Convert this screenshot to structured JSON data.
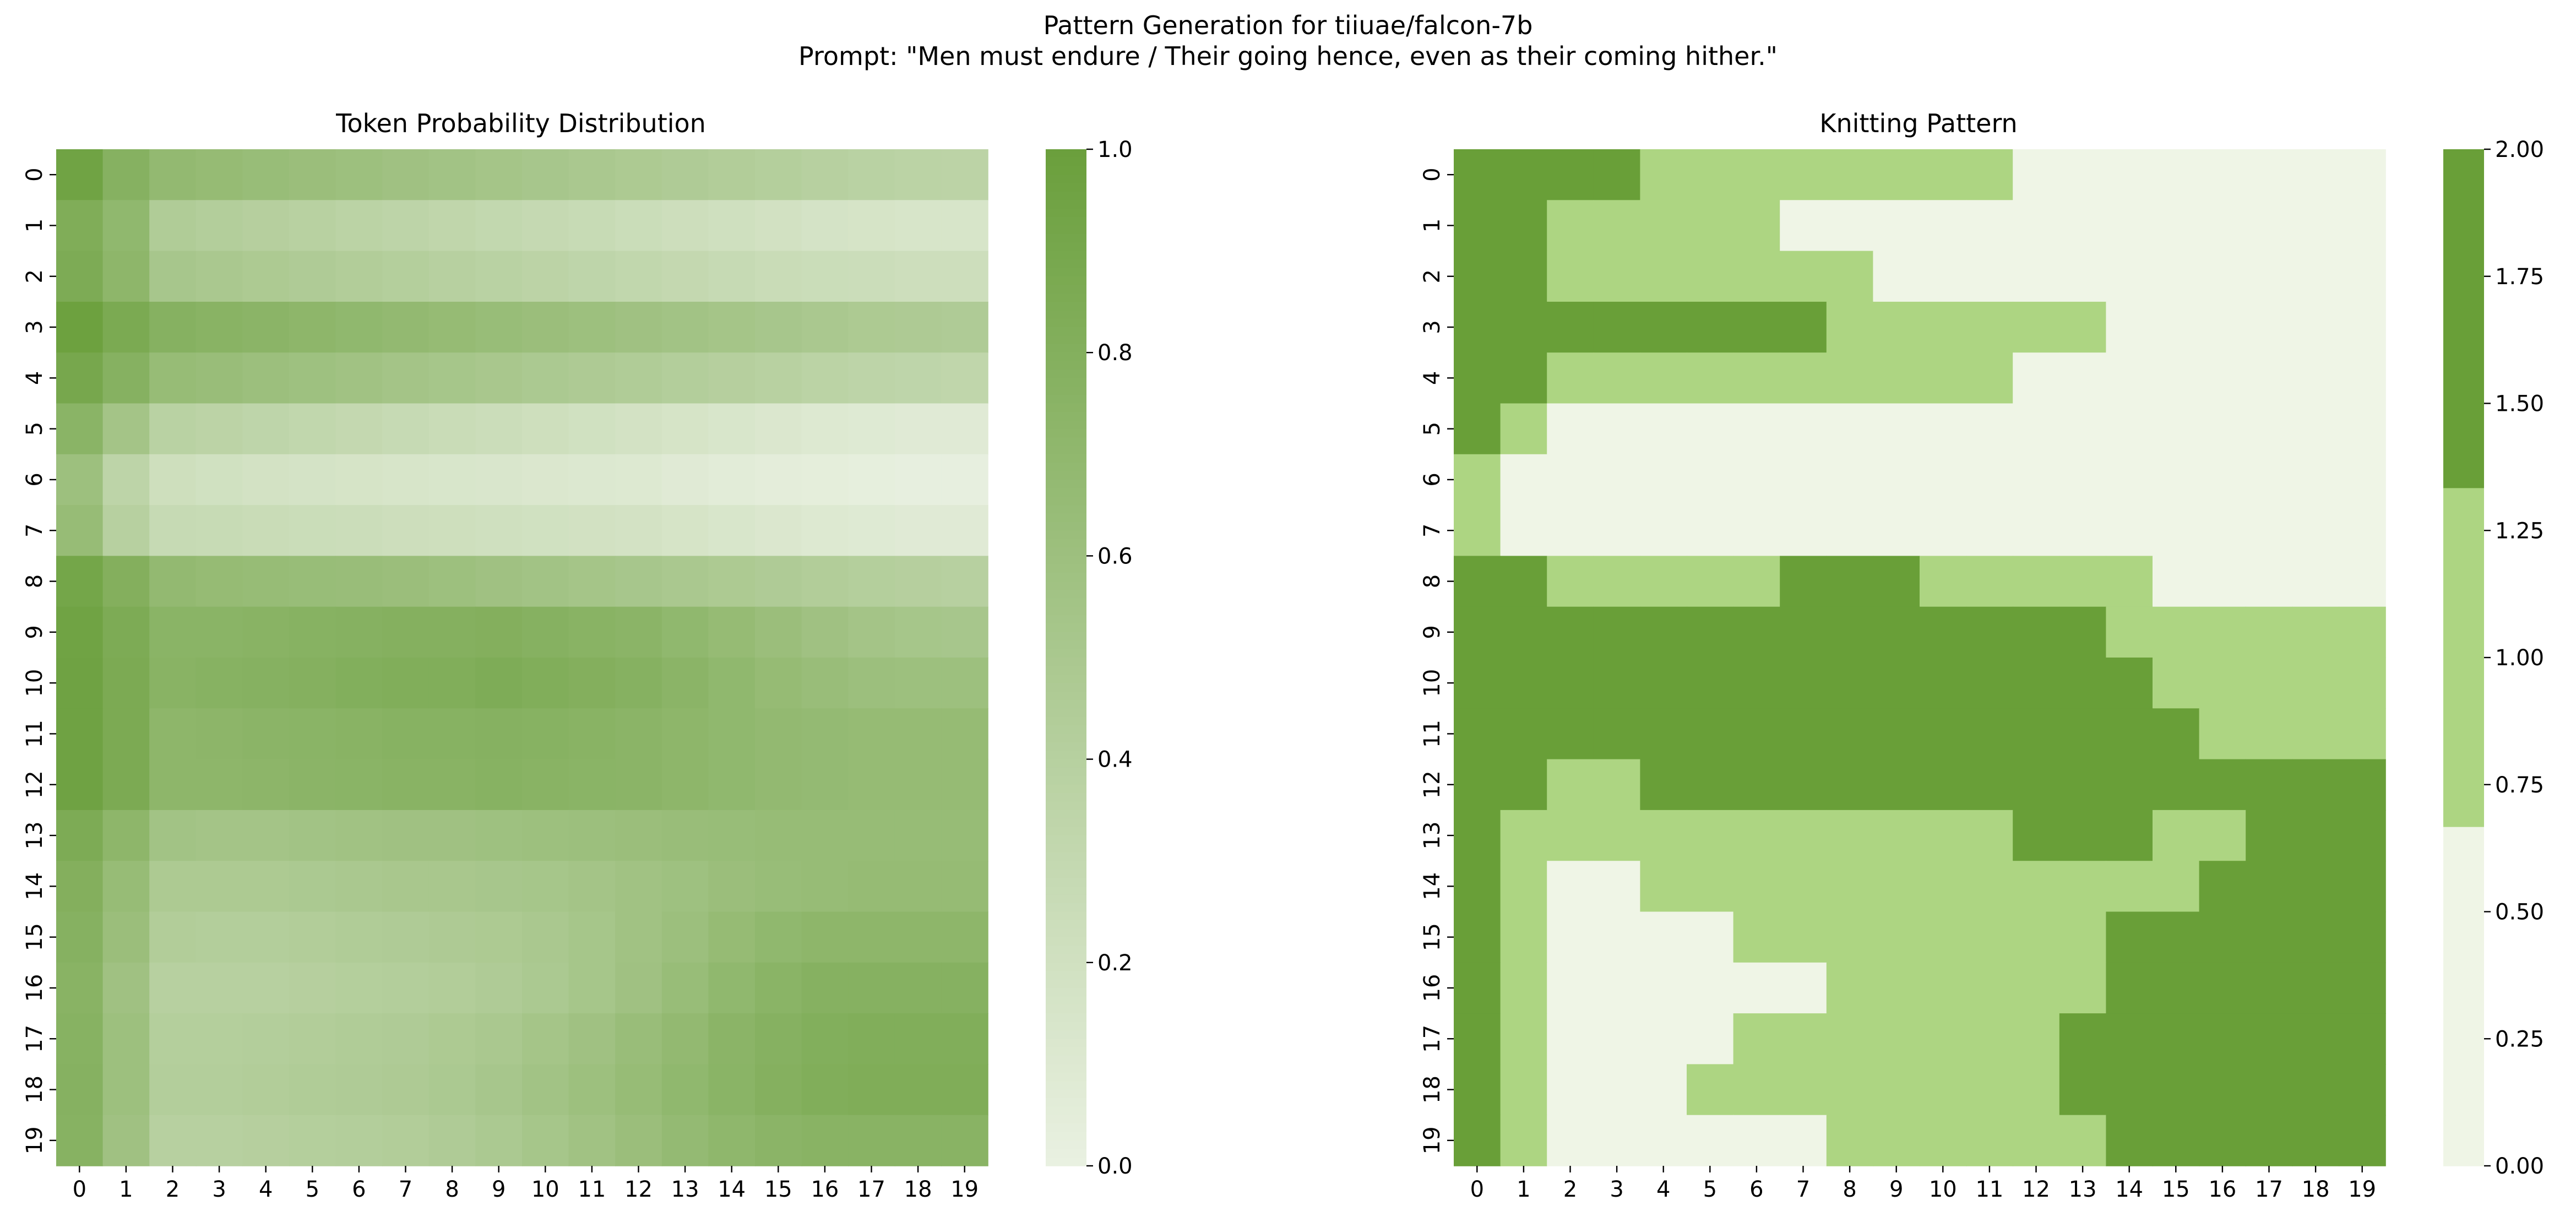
{
  "figure": {
    "title_line1": "Pattern Generation for tiiuae/falcon-7b",
    "title_line2": "Prompt: \"Men must endure / Their going hence, even as their coming hither.\""
  },
  "colors": {
    "low": "#eff5e6",
    "mid": "#add582",
    "high": "#699f38",
    "cmap_low": "#eaf1e2",
    "cmap_high": "#6a9f3c"
  },
  "chart_data": [
    {
      "type": "heatmap",
      "title": "Token Probability Distribution",
      "xlabel": "",
      "ylabel": "",
      "x_ticks": [
        "0",
        "1",
        "2",
        "3",
        "4",
        "5",
        "6",
        "7",
        "8",
        "9",
        "10",
        "11",
        "12",
        "13",
        "14",
        "15",
        "16",
        "17",
        "18",
        "19"
      ],
      "y_ticks": [
        "0",
        "1",
        "2",
        "3",
        "4",
        "5",
        "6",
        "7",
        "8",
        "9",
        "10",
        "11",
        "12",
        "13",
        "14",
        "15",
        "16",
        "17",
        "18",
        "19"
      ],
      "colorbar": {
        "min": 0.0,
        "max": 1.0,
        "ticks": [
          "0.0",
          "0.2",
          "0.4",
          "0.6",
          "0.8",
          "1.0"
        ],
        "continuous": true
      },
      "values": [
        [
          0.95,
          0.78,
          0.68,
          0.66,
          0.64,
          0.62,
          0.6,
          0.58,
          0.56,
          0.54,
          0.52,
          0.5,
          0.48,
          0.46,
          0.44,
          0.42,
          0.4,
          0.38,
          0.37,
          0.36
        ],
        [
          0.83,
          0.7,
          0.45,
          0.43,
          0.41,
          0.39,
          0.37,
          0.35,
          0.33,
          0.31,
          0.29,
          0.27,
          0.25,
          0.23,
          0.21,
          0.19,
          0.17,
          0.16,
          0.15,
          0.15
        ],
        [
          0.85,
          0.72,
          0.52,
          0.5,
          0.48,
          0.46,
          0.44,
          0.42,
          0.4,
          0.38,
          0.36,
          0.34,
          0.32,
          0.3,
          0.28,
          0.26,
          0.25,
          0.24,
          0.23,
          0.23
        ],
        [
          0.98,
          0.87,
          0.78,
          0.76,
          0.74,
          0.72,
          0.7,
          0.68,
          0.66,
          0.64,
          0.62,
          0.6,
          0.58,
          0.56,
          0.54,
          0.52,
          0.5,
          0.48,
          0.47,
          0.46
        ],
        [
          0.9,
          0.78,
          0.65,
          0.63,
          0.61,
          0.59,
          0.57,
          0.55,
          0.53,
          0.51,
          0.49,
          0.47,
          0.45,
          0.43,
          0.41,
          0.39,
          0.37,
          0.35,
          0.34,
          0.33
        ],
        [
          0.75,
          0.55,
          0.38,
          0.36,
          0.34,
          0.32,
          0.3,
          0.28,
          0.26,
          0.24,
          0.22,
          0.2,
          0.18,
          0.16,
          0.14,
          0.12,
          0.1,
          0.09,
          0.08,
          0.08
        ],
        [
          0.6,
          0.35,
          0.22,
          0.2,
          0.18,
          0.17,
          0.16,
          0.15,
          0.14,
          0.13,
          0.12,
          0.11,
          0.1,
          0.08,
          0.06,
          0.05,
          0.04,
          0.03,
          0.02,
          0.02
        ],
        [
          0.65,
          0.4,
          0.28,
          0.27,
          0.26,
          0.25,
          0.24,
          0.23,
          0.22,
          0.21,
          0.2,
          0.19,
          0.18,
          0.16,
          0.14,
          0.12,
          0.1,
          0.09,
          0.08,
          0.08
        ],
        [
          0.92,
          0.8,
          0.68,
          0.66,
          0.65,
          0.64,
          0.63,
          0.62,
          0.6,
          0.58,
          0.56,
          0.54,
          0.52,
          0.5,
          0.48,
          0.46,
          0.44,
          0.42,
          0.41,
          0.4
        ],
        [
          0.95,
          0.85,
          0.75,
          0.75,
          0.76,
          0.77,
          0.78,
          0.79,
          0.79,
          0.8,
          0.78,
          0.76,
          0.74,
          0.7,
          0.66,
          0.62,
          0.58,
          0.55,
          0.53,
          0.52
        ],
        [
          0.96,
          0.86,
          0.76,
          0.77,
          0.78,
          0.79,
          0.81,
          0.82,
          0.82,
          0.84,
          0.82,
          0.8,
          0.78,
          0.74,
          0.7,
          0.66,
          0.63,
          0.61,
          0.6,
          0.6
        ],
        [
          0.96,
          0.86,
          0.72,
          0.73,
          0.74,
          0.75,
          0.76,
          0.77,
          0.77,
          0.78,
          0.77,
          0.76,
          0.74,
          0.72,
          0.7,
          0.68,
          0.67,
          0.66,
          0.66,
          0.66
        ],
        [
          0.96,
          0.86,
          0.72,
          0.72,
          0.73,
          0.74,
          0.75,
          0.76,
          0.76,
          0.77,
          0.76,
          0.75,
          0.74,
          0.72,
          0.7,
          0.68,
          0.67,
          0.66,
          0.66,
          0.66
        ],
        [
          0.85,
          0.72,
          0.56,
          0.55,
          0.55,
          0.56,
          0.57,
          0.58,
          0.58,
          0.59,
          0.6,
          0.61,
          0.62,
          0.63,
          0.64,
          0.65,
          0.65,
          0.65,
          0.65,
          0.65
        ],
        [
          0.8,
          0.65,
          0.48,
          0.48,
          0.48,
          0.49,
          0.5,
          0.51,
          0.51,
          0.52,
          0.53,
          0.55,
          0.57,
          0.59,
          0.62,
          0.64,
          0.65,
          0.66,
          0.66,
          0.66
        ],
        [
          0.78,
          0.62,
          0.44,
          0.43,
          0.43,
          0.44,
          0.45,
          0.46,
          0.47,
          0.48,
          0.5,
          0.53,
          0.57,
          0.61,
          0.66,
          0.7,
          0.72,
          0.72,
          0.72,
          0.72
        ],
        [
          0.76,
          0.58,
          0.4,
          0.4,
          0.4,
          0.41,
          0.42,
          0.43,
          0.44,
          0.46,
          0.49,
          0.53,
          0.58,
          0.64,
          0.7,
          0.75,
          0.78,
          0.78,
          0.78,
          0.78
        ],
        [
          0.77,
          0.6,
          0.42,
          0.42,
          0.43,
          0.44,
          0.45,
          0.46,
          0.48,
          0.5,
          0.54,
          0.58,
          0.63,
          0.68,
          0.74,
          0.78,
          0.81,
          0.82,
          0.82,
          0.82
        ],
        [
          0.78,
          0.6,
          0.43,
          0.43,
          0.44,
          0.45,
          0.46,
          0.47,
          0.49,
          0.52,
          0.56,
          0.6,
          0.65,
          0.7,
          0.75,
          0.79,
          0.82,
          0.83,
          0.83,
          0.83
        ],
        [
          0.77,
          0.58,
          0.4,
          0.4,
          0.41,
          0.42,
          0.43,
          0.44,
          0.46,
          0.49,
          0.53,
          0.57,
          0.62,
          0.67,
          0.71,
          0.74,
          0.76,
          0.76,
          0.76,
          0.76
        ]
      ]
    },
    {
      "type": "heatmap",
      "title": "Knitting Pattern",
      "xlabel": "",
      "ylabel": "",
      "x_ticks": [
        "0",
        "1",
        "2",
        "3",
        "4",
        "5",
        "6",
        "7",
        "8",
        "9",
        "10",
        "11",
        "12",
        "13",
        "14",
        "15",
        "16",
        "17",
        "18",
        "19"
      ],
      "y_ticks": [
        "0",
        "1",
        "2",
        "3",
        "4",
        "5",
        "6",
        "7",
        "8",
        "9",
        "10",
        "11",
        "12",
        "13",
        "14",
        "15",
        "16",
        "17",
        "18",
        "19"
      ],
      "colorbar": {
        "min": 0.0,
        "max": 2.0,
        "ticks": [
          "0.00",
          "0.25",
          "0.50",
          "0.75",
          "1.00",
          "1.25",
          "1.50",
          "1.75",
          "2.00"
        ],
        "continuous": false
      },
      "values": [
        [
          2,
          2,
          2,
          2,
          1,
          1,
          1,
          1,
          1,
          1,
          1,
          1,
          0,
          0,
          0,
          0,
          0,
          0,
          0,
          0
        ],
        [
          2,
          2,
          1,
          1,
          1,
          1,
          1,
          0,
          0,
          0,
          0,
          0,
          0,
          0,
          0,
          0,
          0,
          0,
          0,
          0
        ],
        [
          2,
          2,
          1,
          1,
          1,
          1,
          1,
          1,
          1,
          0,
          0,
          0,
          0,
          0,
          0,
          0,
          0,
          0,
          0,
          0
        ],
        [
          2,
          2,
          2,
          2,
          2,
          2,
          2,
          2,
          1,
          1,
          1,
          1,
          1,
          1,
          0,
          0,
          0,
          0,
          0,
          0
        ],
        [
          2,
          2,
          1,
          1,
          1,
          1,
          1,
          1,
          1,
          1,
          1,
          1,
          0,
          0,
          0,
          0,
          0,
          0,
          0,
          0
        ],
        [
          2,
          1,
          0,
          0,
          0,
          0,
          0,
          0,
          0,
          0,
          0,
          0,
          0,
          0,
          0,
          0,
          0,
          0,
          0,
          0
        ],
        [
          1,
          0,
          0,
          0,
          0,
          0,
          0,
          0,
          0,
          0,
          0,
          0,
          0,
          0,
          0,
          0,
          0,
          0,
          0,
          0
        ],
        [
          1,
          0,
          0,
          0,
          0,
          0,
          0,
          0,
          0,
          0,
          0,
          0,
          0,
          0,
          0,
          0,
          0,
          0,
          0,
          0
        ],
        [
          2,
          2,
          1,
          1,
          1,
          1,
          1,
          2,
          2,
          2,
          1,
          1,
          1,
          1,
          1,
          0,
          0,
          0,
          0,
          0
        ],
        [
          2,
          2,
          2,
          2,
          2,
          2,
          2,
          2,
          2,
          2,
          2,
          2,
          2,
          2,
          1,
          1,
          1,
          1,
          1,
          1
        ],
        [
          2,
          2,
          2,
          2,
          2,
          2,
          2,
          2,
          2,
          2,
          2,
          2,
          2,
          2,
          2,
          1,
          1,
          1,
          1,
          1
        ],
        [
          2,
          2,
          2,
          2,
          2,
          2,
          2,
          2,
          2,
          2,
          2,
          2,
          2,
          2,
          2,
          2,
          1,
          1,
          1,
          1
        ],
        [
          2,
          2,
          1,
          1,
          2,
          2,
          2,
          2,
          2,
          2,
          2,
          2,
          2,
          2,
          2,
          2,
          2,
          2,
          2,
          2
        ],
        [
          2,
          1,
          1,
          1,
          1,
          1,
          1,
          1,
          1,
          1,
          1,
          1,
          2,
          2,
          2,
          1,
          1,
          2,
          2,
          2
        ],
        [
          2,
          1,
          0,
          0,
          1,
          1,
          1,
          1,
          1,
          1,
          1,
          1,
          1,
          1,
          1,
          1,
          2,
          2,
          2,
          2
        ],
        [
          2,
          1,
          0,
          0,
          0,
          0,
          1,
          1,
          1,
          1,
          1,
          1,
          1,
          1,
          2,
          2,
          2,
          2,
          2,
          2
        ],
        [
          2,
          1,
          0,
          0,
          0,
          0,
          0,
          0,
          1,
          1,
          1,
          1,
          1,
          1,
          2,
          2,
          2,
          2,
          2,
          2
        ],
        [
          2,
          1,
          0,
          0,
          0,
          0,
          1,
          1,
          1,
          1,
          1,
          1,
          1,
          2,
          2,
          2,
          2,
          2,
          2,
          2
        ],
        [
          2,
          1,
          0,
          0,
          0,
          1,
          1,
          1,
          1,
          1,
          1,
          1,
          1,
          2,
          2,
          2,
          2,
          2,
          2,
          2
        ],
        [
          2,
          1,
          0,
          0,
          0,
          0,
          0,
          0,
          1,
          1,
          1,
          1,
          1,
          1,
          2,
          2,
          2,
          2,
          2,
          2
        ]
      ]
    }
  ]
}
